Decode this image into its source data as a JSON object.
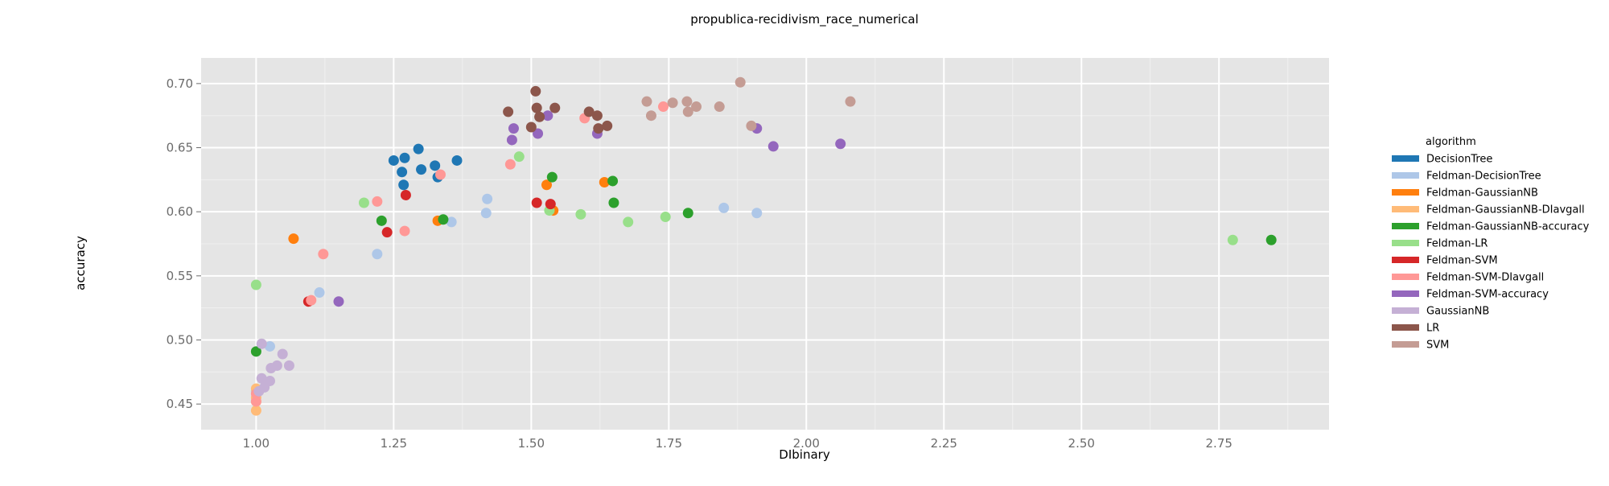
{
  "chart_data": {
    "type": "scatter",
    "title": "propublica-recidivism_race_numerical",
    "xlabel": "DIbinary",
    "ylabel": "accuracy",
    "xlim": [
      0.9,
      2.95
    ],
    "ylim": [
      0.43,
      0.72
    ],
    "x_ticks": [
      "1.00",
      "1.25",
      "1.50",
      "1.75",
      "2.00",
      "2.25",
      "2.50",
      "2.75"
    ],
    "x_tick_values": [
      1.0,
      1.25,
      1.5,
      1.75,
      2.0,
      2.25,
      2.5,
      2.75
    ],
    "y_ticks": [
      "0.45",
      "0.50",
      "0.55",
      "0.60",
      "0.65",
      "0.70"
    ],
    "y_tick_values": [
      0.45,
      0.5,
      0.55,
      0.6,
      0.65,
      0.7
    ],
    "grid": true,
    "legend_title": "algorithm",
    "legend_position": "right",
    "series": [
      {
        "name": "DecisionTree",
        "color": "#1f77b4",
        "points": [
          [
            1.25,
            0.64
          ],
          [
            1.27,
            0.642
          ],
          [
            1.295,
            0.649
          ],
          [
            1.265,
            0.631
          ],
          [
            1.3,
            0.633
          ],
          [
            1.325,
            0.636
          ],
          [
            1.268,
            0.621
          ],
          [
            1.33,
            0.627
          ],
          [
            1.365,
            0.64
          ]
        ]
      },
      {
        "name": "Feldman-DecisionTree",
        "color": "#aec7e8",
        "points": [
          [
            1.0,
            0.46
          ],
          [
            1.025,
            0.495
          ],
          [
            1.115,
            0.537
          ],
          [
            1.22,
            0.567
          ],
          [
            1.355,
            0.592
          ],
          [
            1.418,
            0.599
          ],
          [
            1.42,
            0.61
          ],
          [
            1.85,
            0.603
          ],
          [
            1.91,
            0.599
          ]
        ]
      },
      {
        "name": "Feldman-GaussianNB",
        "color": "#ff7f0e",
        "points": [
          [
            1.068,
            0.579
          ],
          [
            1.33,
            0.593
          ],
          [
            1.528,
            0.621
          ],
          [
            1.633,
            0.623
          ],
          [
            1.54,
            0.601
          ]
        ]
      },
      {
        "name": "Feldman-GaussianNB-DIavgall",
        "color": "#ffbb78",
        "points": [
          [
            1.0,
            0.445
          ],
          [
            1.0,
            0.462
          ],
          [
            1.0,
            0.455
          ],
          [
            1.0,
            0.452
          ]
        ]
      },
      {
        "name": "Feldman-GaussianNB-accuracy",
        "color": "#2ca02c",
        "points": [
          [
            1.0,
            0.491
          ],
          [
            1.228,
            0.593
          ],
          [
            1.34,
            0.594
          ],
          [
            1.538,
            0.627
          ],
          [
            1.648,
            0.624
          ],
          [
            1.65,
            0.607
          ],
          [
            1.785,
            0.599
          ],
          [
            2.845,
            0.578
          ]
        ]
      },
      {
        "name": "Feldman-LR",
        "color": "#98df8a",
        "points": [
          [
            1.0,
            0.543
          ],
          [
            1.196,
            0.607
          ],
          [
            1.478,
            0.643
          ],
          [
            1.533,
            0.601
          ],
          [
            1.59,
            0.598
          ],
          [
            1.676,
            0.592
          ],
          [
            1.744,
            0.596
          ],
          [
            2.775,
            0.578
          ]
        ]
      },
      {
        "name": "Feldman-SVM",
        "color": "#d62728",
        "points": [
          [
            1.095,
            0.53
          ],
          [
            1.238,
            0.584
          ],
          [
            1.272,
            0.613
          ],
          [
            1.51,
            0.607
          ],
          [
            1.535,
            0.606
          ]
        ]
      },
      {
        "name": "Feldman-SVM-DIavgall",
        "color": "#ff9896",
        "points": [
          [
            1.0,
            0.452
          ],
          [
            1.0,
            0.458
          ],
          [
            1.1,
            0.531
          ],
          [
            1.122,
            0.567
          ],
          [
            1.22,
            0.608
          ],
          [
            1.27,
            0.585
          ],
          [
            1.335,
            0.629
          ],
          [
            1.462,
            0.637
          ],
          [
            1.597,
            0.673
          ],
          [
            1.74,
            0.682
          ]
        ]
      },
      {
        "name": "Feldman-SVM-accuracy",
        "color": "#9467bd",
        "points": [
          [
            1.15,
            0.53
          ],
          [
            1.465,
            0.656
          ],
          [
            1.468,
            0.665
          ],
          [
            1.512,
            0.661
          ],
          [
            1.53,
            0.675
          ],
          [
            1.62,
            0.661
          ],
          [
            1.91,
            0.665
          ],
          [
            1.94,
            0.651
          ],
          [
            2.062,
            0.653
          ]
        ]
      },
      {
        "name": "GaussianNB",
        "color": "#c5b0d5",
        "points": [
          [
            1.005,
            0.46
          ],
          [
            1.01,
            0.497
          ],
          [
            1.01,
            0.47
          ],
          [
            1.015,
            0.463
          ],
          [
            1.025,
            0.468
          ],
          [
            1.027,
            0.478
          ],
          [
            1.038,
            0.48
          ],
          [
            1.048,
            0.489
          ],
          [
            1.06,
            0.48
          ]
        ]
      },
      {
        "name": "LR",
        "color": "#8c564b",
        "points": [
          [
            1.458,
            0.678
          ],
          [
            1.5,
            0.666
          ],
          [
            1.508,
            0.694
          ],
          [
            1.51,
            0.681
          ],
          [
            1.515,
            0.674
          ],
          [
            1.543,
            0.681
          ],
          [
            1.605,
            0.678
          ],
          [
            1.62,
            0.675
          ],
          [
            1.622,
            0.665
          ],
          [
            1.638,
            0.667
          ]
        ]
      },
      {
        "name": "SVM",
        "color": "#c49c94",
        "points": [
          [
            1.71,
            0.686
          ],
          [
            1.718,
            0.675
          ],
          [
            1.757,
            0.685
          ],
          [
            1.783,
            0.686
          ],
          [
            1.785,
            0.678
          ],
          [
            1.8,
            0.682
          ],
          [
            1.842,
            0.682
          ],
          [
            1.88,
            0.701
          ],
          [
            1.9,
            0.667
          ],
          [
            2.08,
            0.686
          ]
        ]
      }
    ]
  }
}
